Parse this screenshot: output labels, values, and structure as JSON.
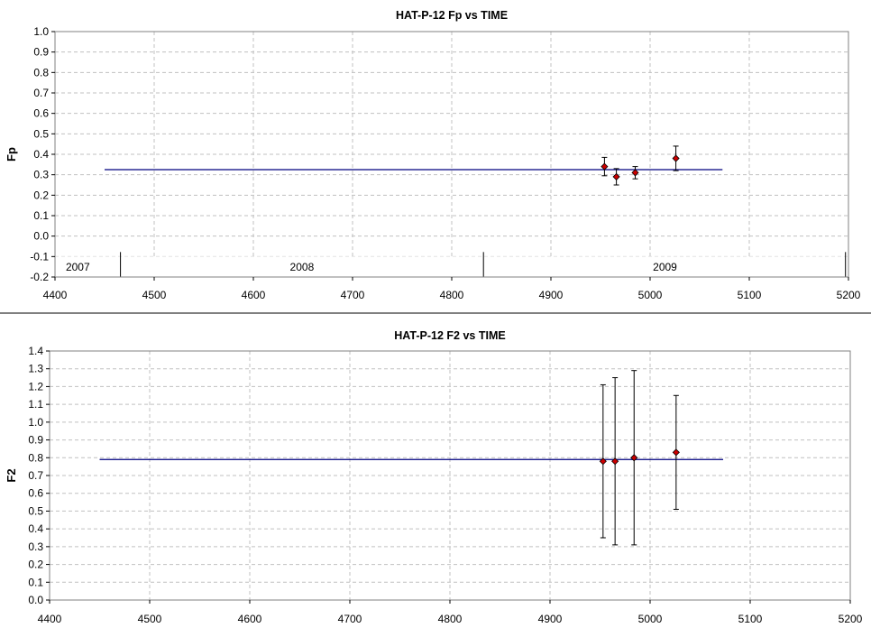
{
  "colors": {
    "fit_line": "#00007f",
    "marker": "#cc0000",
    "grid": "#c0c0c0",
    "axis": "#808080"
  },
  "chart_data": [
    {
      "type": "scatter",
      "title": "HAT-P-12 Fp vs TIME",
      "xlabel": "",
      "ylabel": "Fp",
      "xlim": [
        4400,
        5200
      ],
      "ylim": [
        -0.2,
        1.0
      ],
      "xticks": [
        4400,
        4500,
        4600,
        4700,
        4800,
        4900,
        5000,
        5100,
        5200
      ],
      "yticks": [
        -0.2,
        -0.1,
        0.0,
        0.1,
        0.2,
        0.3,
        0.4,
        0.5,
        0.6,
        0.7,
        0.8,
        0.9,
        1.0
      ],
      "ytick_decimals": 1,
      "grid": true,
      "fit_line": {
        "x": [
          4450,
          5073
        ],
        "y": 0.325
      },
      "points": [
        {
          "x": 4954,
          "y": 0.34,
          "err": 0.045
        },
        {
          "x": 4966,
          "y": 0.29,
          "err": 0.04
        },
        {
          "x": 4985,
          "y": 0.31,
          "err": 0.03
        },
        {
          "x": 5026,
          "y": 0.38,
          "err": 0.06
        }
      ],
      "year_band": {
        "y_top": -0.1,
        "dividers": [
          4466,
          4832,
          5197
        ],
        "labels": [
          {
            "x": 4423,
            "text": "2007"
          },
          {
            "x": 4649,
            "text": "2008"
          },
          {
            "x": 5015,
            "text": "2009"
          }
        ]
      }
    },
    {
      "type": "scatter",
      "title": "HAT-P-12 F2 vs TIME",
      "xlabel": "",
      "ylabel": "F2",
      "xlim": [
        4400,
        5200
      ],
      "ylim": [
        0.0,
        1.4
      ],
      "xticks": [
        4400,
        4500,
        4600,
        4700,
        4800,
        4900,
        5000,
        5100,
        5200
      ],
      "yticks": [
        0.0,
        0.1,
        0.2,
        0.3,
        0.4,
        0.5,
        0.6,
        0.7,
        0.8,
        0.9,
        1.0,
        1.1,
        1.2,
        1.3,
        1.4
      ],
      "ytick_decimals": 1,
      "grid": true,
      "fit_line": {
        "x": [
          4450,
          5073
        ],
        "y": 0.79
      },
      "points": [
        {
          "x": 4953,
          "y": 0.78,
          "err": 0.43
        },
        {
          "x": 4965,
          "y": 0.78,
          "err": 0.47
        },
        {
          "x": 4984,
          "y": 0.8,
          "err": 0.49
        },
        {
          "x": 5026,
          "y": 0.83,
          "err": 0.32
        }
      ]
    }
  ]
}
